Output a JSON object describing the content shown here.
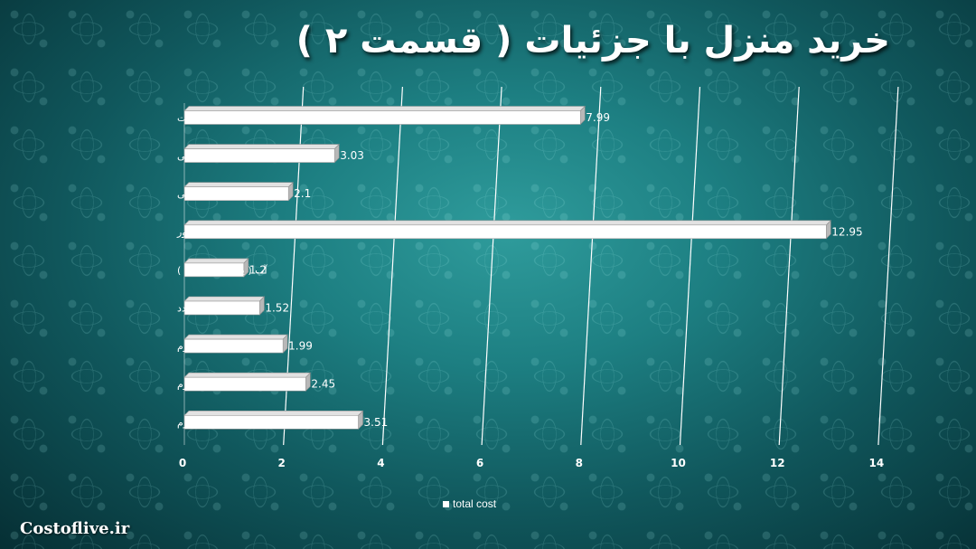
{
  "title": "خرید منزل با جزئیات ( قسمت ۲ )",
  "brand": "Costoflive.ir",
  "chart_data": {
    "type": "bar",
    "orientation": "horizontal",
    "categories": [
      "سیگار مارلبرو یک پاکت",
      "ماءالشعیر وارداتی",
      "ماءالشعیر داخلی",
      "نوشیدنی انگور",
      "آب ( یک و نیم لیتری )",
      "کاهو   یک عدد",
      "پیاز یک کیلوگرم",
      "سیب زمینی یک کیلوگرم",
      "گوجه فرنگی یک کیلوگرم"
    ],
    "series": [
      {
        "name": "total cost",
        "values": [
          7.99,
          3.03,
          2.1,
          12.95,
          1.2,
          1.52,
          1.99,
          2.45,
          3.51
        ],
        "value_labels": [
          "7.99",
          "3.03",
          "2.1",
          "12.95",
          "1.2",
          "1.52",
          "1.99",
          "2.45",
          "3.51"
        ]
      }
    ],
    "xticks": [
      0,
      2,
      4,
      6,
      8,
      10,
      12,
      14
    ],
    "xlim": [
      0,
      14
    ],
    "grid": true,
    "legend": "bottom",
    "bar_color": "#ffffff"
  }
}
